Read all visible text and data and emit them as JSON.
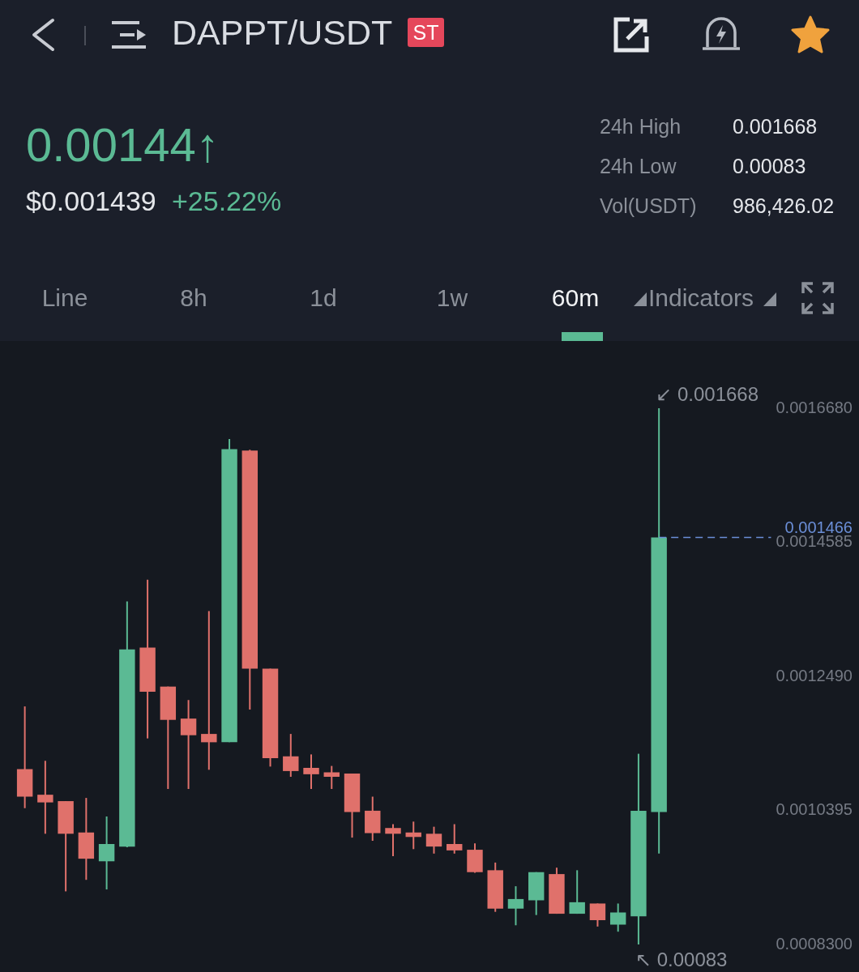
{
  "chart_data": {
    "type": "candlestick",
    "title": "DAPPT/USDT",
    "categories": [
      null,
      null,
      null,
      null,
      null,
      null,
      null,
      null,
      null,
      null,
      null,
      null,
      null,
      null,
      null,
      null,
      null,
      null,
      null,
      null,
      null,
      null,
      null,
      null,
      null,
      null,
      null,
      null,
      null,
      null,
      null,
      null,
      null,
      null,
      null,
      null,
      null
    ],
    "ohlc": [
      [
        0.001104,
        0.001202,
        0.001043,
        0.001061
      ],
      [
        0.001064,
        0.001117,
        0.001003,
        0.001052
      ],
      [
        0.001054,
        0.001054,
        0.000913,
        0.001003
      ],
      [
        0.001005,
        0.001059,
        0.000931,
        0.000964
      ],
      [
        0.00096,
        0.00103,
        0.000916,
        0.000987
      ],
      [
        0.000983,
        0.001366,
        0.000982,
        0.001291
      ],
      [
        0.001294,
        0.0014,
        0.001152,
        0.001225
      ],
      [
        0.001233,
        0.001233,
        0.001073,
        0.001181
      ],
      [
        0.001183,
        0.001212,
        0.001073,
        0.001157
      ],
      [
        0.001159,
        0.001351,
        0.001103,
        0.001146
      ],
      [
        0.001146,
        0.00162,
        0.001146,
        0.001604
      ],
      [
        0.001602,
        0.001603,
        0.001197,
        0.001261
      ],
      [
        0.001261,
        0.001261,
        0.001108,
        0.001121
      ],
      [
        0.001124,
        0.001159,
        0.001092,
        0.001101
      ],
      [
        0.001106,
        0.001127,
        0.001073,
        0.001096
      ],
      [
        0.001099,
        0.001109,
        0.001073,
        0.001092
      ],
      [
        0.001097,
        0.001097,
        0.000997,
        0.001037
      ],
      [
        0.001039,
        0.001061,
        0.000992,
        0.001004
      ],
      [
        0.001012,
        0.001018,
        0.000968,
        0.001003
      ],
      [
        0.001005,
        0.001022,
        0.000979,
        0.000998
      ],
      [
        0.001003,
        0.001014,
        0.000972,
        0.000983
      ],
      [
        0.000987,
        0.001018,
        0.000972,
        0.000977
      ],
      [
        0.000978,
        0.000988,
        0.000942,
        0.000943
      ],
      [
        0.000946,
        0.000958,
        0.000881,
        0.000886
      ],
      [
        0.000886,
        0.000921,
        0.00086,
        0.000901
      ],
      [
        0.000899,
        0.000943,
        0.000876,
        0.000943
      ],
      [
        0.00094,
        0.00095,
        0.000878,
        0.000878
      ],
      [
        0.000878,
        0.000946,
        0.000878,
        0.000896
      ],
      [
        0.000894,
        0.000894,
        0.000858,
        0.000868
      ],
      [
        0.000861,
        0.000894,
        0.00085,
        0.00088
      ],
      [
        0.000874,
        0.001128,
        0.00083,
        0.001039
      ],
      [
        0.001037,
        0.001668,
        0.000972,
        0.001466
      ],
      null,
      null,
      null,
      null,
      null
    ],
    "colors": [
      "#e0716b",
      "#e0716b",
      "#e0716b",
      "#e0716b",
      "#5bba94",
      "#5bba94",
      "#e0716b",
      "#e0716b",
      "#e0716b",
      "#e0716b",
      "#5bba94",
      "#e0716b",
      "#e0716b",
      "#e0716b",
      "#e0716b",
      "#e0716b",
      "#e0716b",
      "#e0716b",
      "#e0716b",
      "#e0716b",
      "#e0716b",
      "#e0716b",
      "#e0716b",
      "#e0716b",
      "#5bba94",
      "#5bba94",
      "#e0716b",
      "#5bba94",
      "#e0716b",
      "#5bba94",
      "#5bba94",
      "#5bba94",
      null,
      null,
      null,
      null,
      null
    ],
    "ylim": [
      0.00083,
      0.001668
    ],
    "yticks": [
      {
        "value": 0.00083,
        "label": "0.0008300"
      },
      {
        "value": 0.0010395,
        "label": "0.0010395"
      },
      {
        "value": 0.001249,
        "label": "0.0012490"
      },
      {
        "value": 0.0014585,
        "label": "0.0014585"
      },
      {
        "value": 0.001668,
        "label": "0.0016680"
      }
    ],
    "tick_labels": "y",
    "ref_lines": [
      {
        "axis": "y",
        "value": 0.001466,
        "label": "0.001466",
        "color": "#6b8fd8",
        "line_style": "dashed"
      }
    ],
    "annotations": [
      "ST",
      "0.00144↑",
      "$0.001439",
      "+25.22%",
      "24h High",
      "0.001668",
      "24h Low",
      "0.00083",
      "Vol(USDT)",
      "986,426.02",
      "Line",
      "8h",
      "1d",
      "1w",
      "60m",
      "Indicators",
      "↙ 0.001668",
      "↖ 0.00083"
    ]
  }
}
